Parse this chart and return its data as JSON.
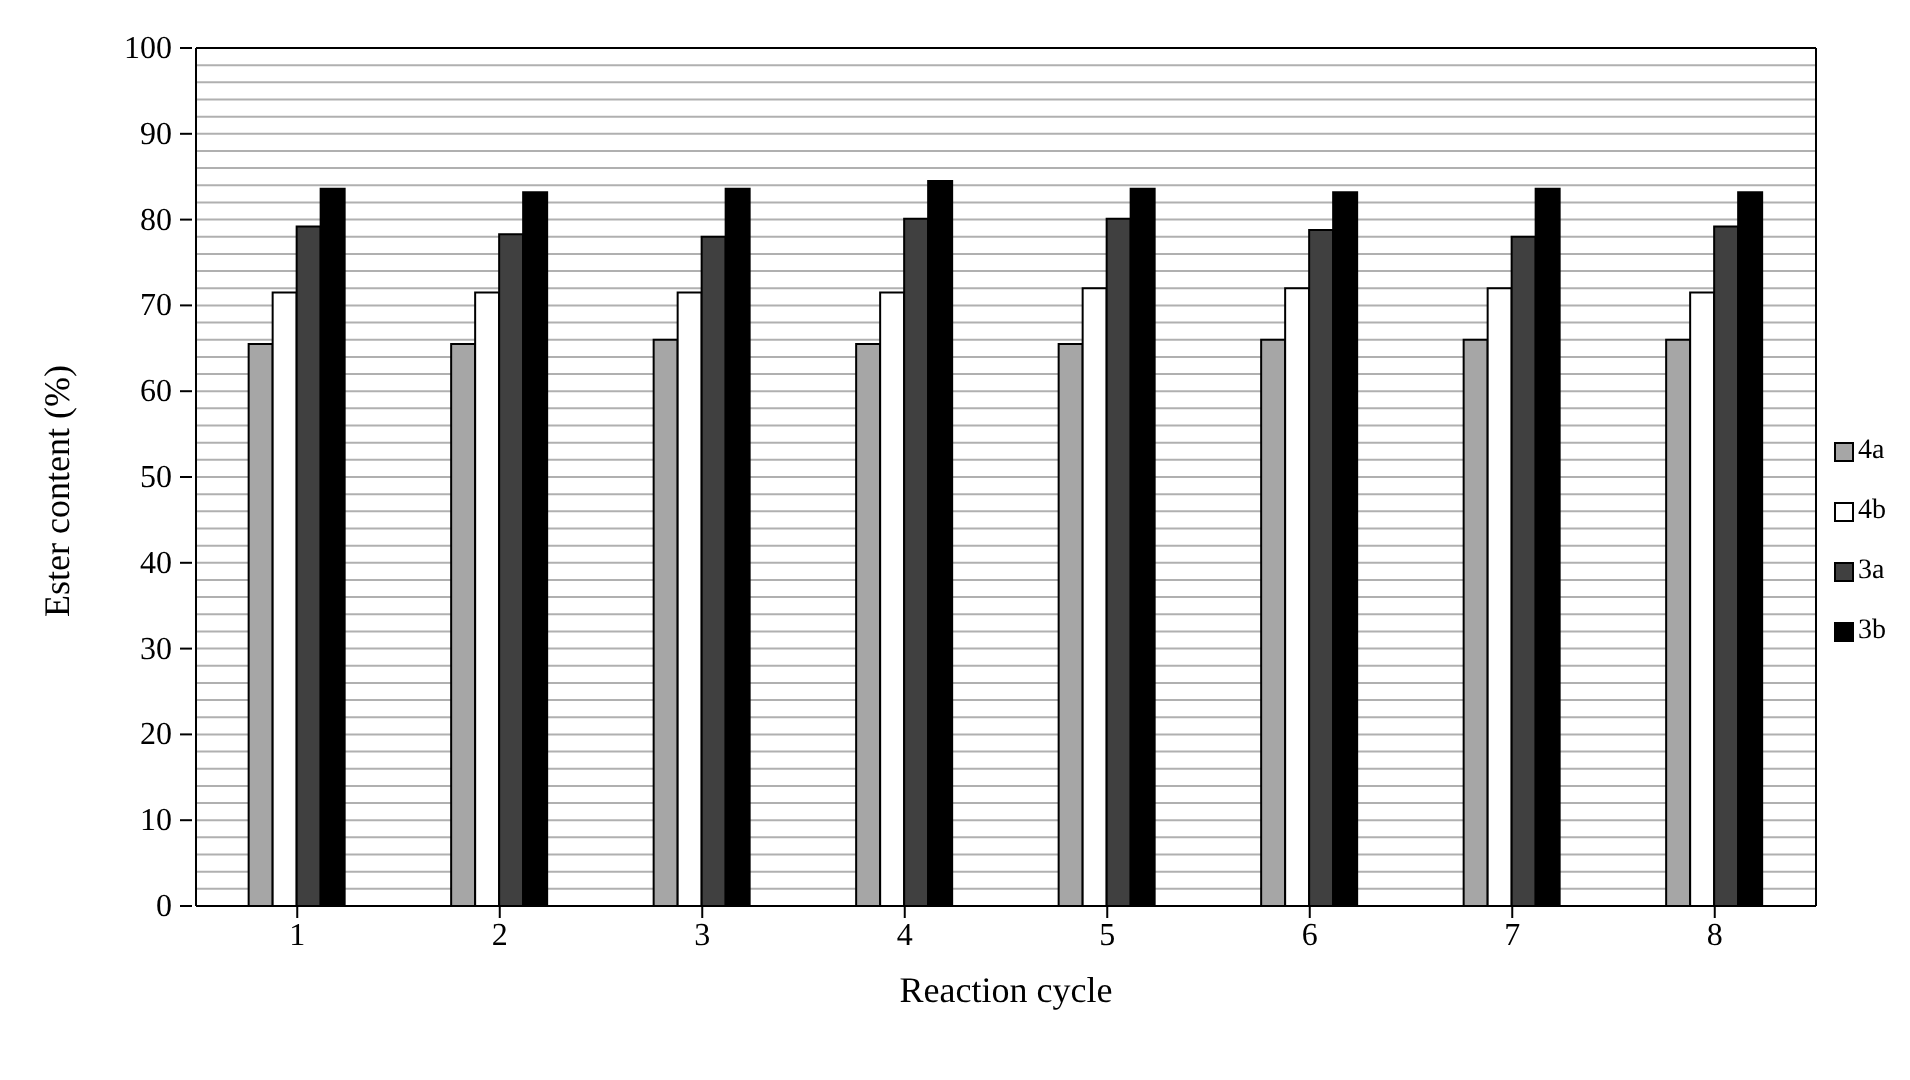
{
  "chart_data": {
    "type": "bar",
    "xlabel": "Reaction cycle",
    "ylabel": "Ester content (%)",
    "categories": [
      "1",
      "2",
      "3",
      "4",
      "5",
      "6",
      "7",
      "8"
    ],
    "series": [
      {
        "name": "4a",
        "color": "#a6a6a6",
        "values": [
          65.5,
          65.5,
          66,
          65.5,
          65.5,
          66,
          66,
          66
        ]
      },
      {
        "name": "4b",
        "color": "#ffffff",
        "values": [
          71.5,
          71.5,
          71.5,
          71.5,
          72,
          72,
          72,
          71.5
        ]
      },
      {
        "name": "3a",
        "color": "#404040",
        "values": [
          79.2,
          78.3,
          78,
          80.1,
          80.1,
          78.8,
          78,
          79.2
        ]
      },
      {
        "name": "3b",
        "color": "#000000",
        "values": [
          83.6,
          83.2,
          83.6,
          84.5,
          83.6,
          83.2,
          83.6,
          83.2
        ]
      }
    ],
    "ylim": [
      0,
      100
    ],
    "yticks": [
      0,
      {
        "value": 2,
        "label": null
      },
      {
        "value": 4,
        "label": null
      },
      {
        "value": 6,
        "label": null
      },
      {
        "value": 8,
        "label": null
      },
      10,
      {
        "value": 12,
        "label": null
      },
      {
        "value": 14,
        "label": null
      },
      {
        "value": 16,
        "label": null
      },
      {
        "value": 18,
        "label": null
      },
      20,
      {
        "value": 22,
        "label": null
      },
      {
        "value": 24,
        "label": null
      },
      {
        "value": 26,
        "label": null
      },
      {
        "value": 28,
        "label": null
      },
      30,
      {
        "value": 32,
        "label": null
      },
      {
        "value": 34,
        "label": null
      },
      {
        "value": 36,
        "label": null
      },
      {
        "value": 38,
        "label": null
      },
      40,
      {
        "value": 42,
        "label": null
      },
      {
        "value": 44,
        "label": null
      },
      {
        "value": 46,
        "label": null
      },
      {
        "value": 48,
        "label": null
      },
      50,
      {
        "value": 52,
        "label": null
      },
      {
        "value": 54,
        "label": null
      },
      {
        "value": 56,
        "label": null
      },
      {
        "value": 58,
        "label": null
      },
      60,
      {
        "value": 62,
        "label": null
      },
      {
        "value": 64,
        "label": null
      },
      {
        "value": 66,
        "label": null
      },
      {
        "value": 68,
        "label": null
      },
      70,
      {
        "value": 72,
        "label": null
      },
      {
        "value": 74,
        "label": null
      },
      {
        "value": 76,
        "label": null
      },
      {
        "value": 78,
        "label": null
      },
      80,
      {
        "value": 82,
        "label": null
      },
      {
        "value": 84,
        "label": null
      },
      {
        "value": 86,
        "label": null
      },
      {
        "value": 88,
        "label": null
      },
      90,
      {
        "value": 92,
        "label": null
      },
      {
        "value": 94,
        "label": null
      },
      {
        "value": 96,
        "label": null
      },
      {
        "value": 98,
        "label": null
      },
      100
    ],
    "grid": "y",
    "legend": "right"
  }
}
